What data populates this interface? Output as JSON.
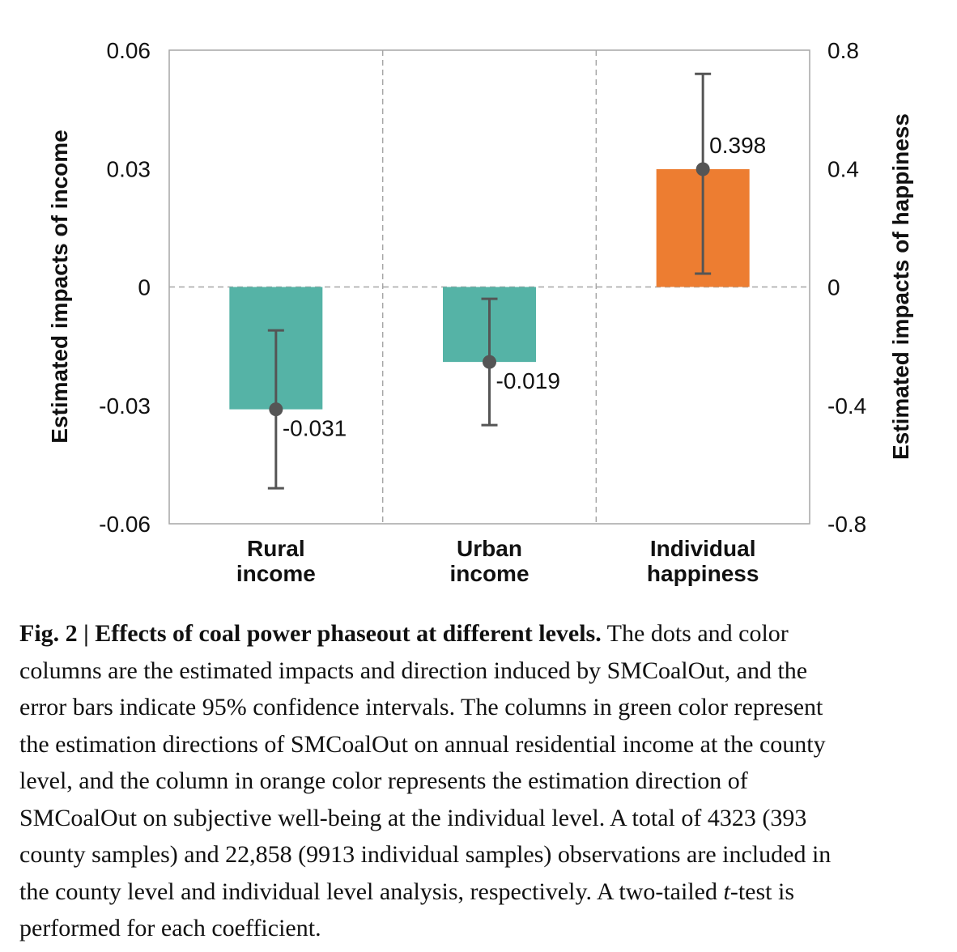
{
  "chart_data": {
    "type": "bar",
    "categories": [
      [
        "Rural",
        "income"
      ],
      [
        "Urban",
        "income"
      ],
      [
        "Individual",
        "happiness"
      ]
    ],
    "series": [
      {
        "values": [
          -0.031,
          -0.019,
          0.398
        ],
        "axis": [
          "left",
          "left",
          "right"
        ],
        "ci_low": [
          -0.051,
          -0.035,
          0.045
        ],
        "ci_high": [
          -0.011,
          -0.003,
          0.72
        ],
        "colors": [
          "#55b3a6",
          "#55b3a6",
          "#ed7d31"
        ]
      }
    ],
    "data_labels": [
      "-0.031",
      "-0.019",
      "0.398"
    ],
    "y_left": {
      "label": "Estimated impacts of income",
      "ylim": [
        -0.06,
        0.06
      ],
      "ticks": [
        "-0.06",
        "-0.03",
        "0",
        "0.03",
        "0.06"
      ]
    },
    "y_right": {
      "label": "Estimated impacts of happiness",
      "ylim": [
        -0.8,
        0.8
      ],
      "ticks": [
        "-0.8",
        "-0.4",
        "0",
        "0.4",
        "0.8"
      ]
    },
    "grid": "dashed zero line and dashed category separators",
    "colors": {
      "income_bar": "#55b3a6",
      "happiness_bar": "#ed7d31",
      "point_and_error": "#555555"
    }
  },
  "caption": {
    "lead": "Fig. 2 | Effects of coal power phaseout at different levels.",
    "lines": [
      " The dots and color",
      "columns are the estimated impacts and direction induced by SMCoalOut, and the",
      "error bars indicate 95% confidence intervals. The columns in green color represent",
      "the estimation directions of SMCoalOut on annual residential income at the county",
      "level, and the column in orange color represents the estimation direction of",
      "SMCoalOut on subjective well-being at the individual level. A total of 4323 (393",
      "county samples) and 22,858 (9913 individual samples) observations are included in",
      "the county level and individual level analysis, respectively. A two-tailed ",
      "performed for each coefficient."
    ],
    "t_symbol": "t",
    "t_suffix": "-test is"
  }
}
